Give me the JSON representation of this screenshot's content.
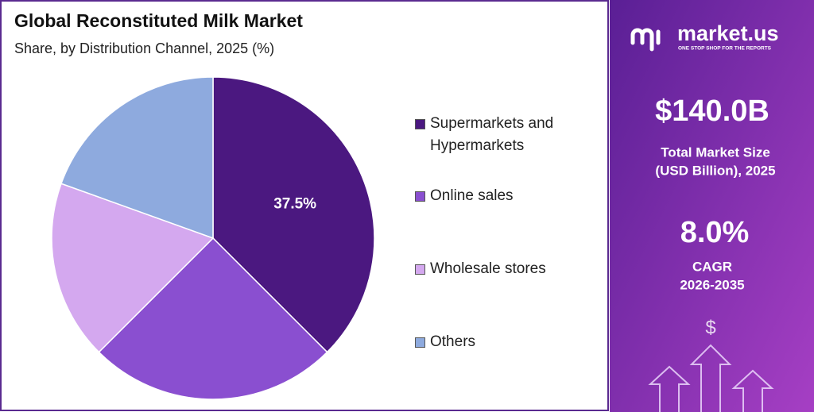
{
  "chart_data": {
    "type": "pie",
    "title": "Global Reconstituted Milk Market",
    "subtitle": "Share, by Distribution Channel, 2025 (%)",
    "categories": [
      "Supermarkets and Hypermarkets",
      "Online sales",
      "Wholesale stores",
      "Others"
    ],
    "values": [
      37.5,
      25,
      18,
      19.5
    ],
    "value_labels": [
      "37.5%",
      null,
      null,
      null
    ],
    "colors": [
      "#4b1880",
      "#8a4fd0",
      "#d4a8ef",
      "#8eaade"
    ]
  },
  "sidebar": {
    "brand": "market.us",
    "tagline": "ONE STOP SHOP FOR THE REPORTS",
    "market_size": "$140.0B",
    "market_size_label_1": "Total Market Size",
    "market_size_label_2": "(USD Billion), 2025",
    "cagr": "8.0%",
    "cagr_label": "CAGR",
    "cagr_period": "2026-2035"
  }
}
